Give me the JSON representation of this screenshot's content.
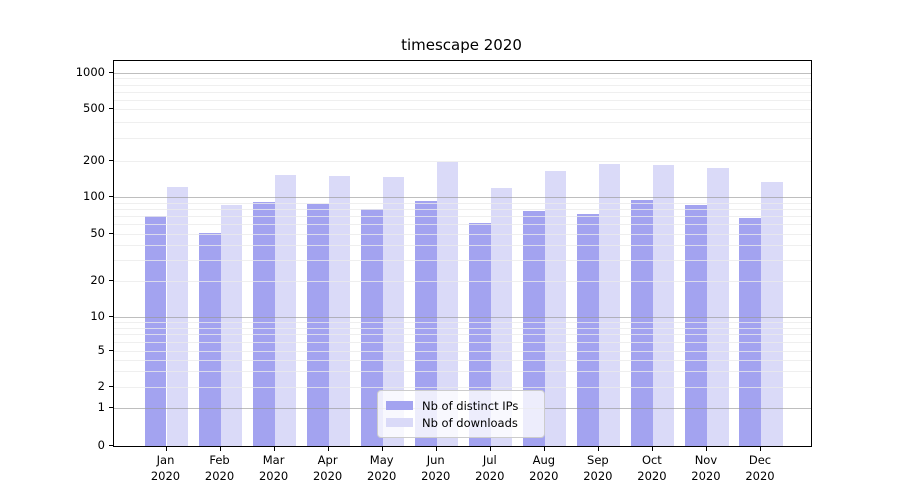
{
  "chart_data": {
    "type": "bar",
    "title": "timescape 2020",
    "categories": [
      "Jan",
      "Feb",
      "Mar",
      "Apr",
      "May",
      "Jun",
      "Jul",
      "Aug",
      "Sep",
      "Oct",
      "Nov",
      "Dec"
    ],
    "category_year": "2020",
    "series": [
      {
        "name": "Nb of distinct IPs",
        "color": "#a3a3f0",
        "values": [
          70,
          51,
          91,
          87,
          80,
          93,
          61,
          77,
          73,
          95,
          86,
          68
        ]
      },
      {
        "name": "Nb of downloads",
        "color": "#dadaf8",
        "values": [
          121,
          86,
          153,
          151,
          148,
          196,
          119,
          164,
          190,
          185,
          175,
          133
        ]
      }
    ],
    "xlabel": "",
    "ylabel": "",
    "yscale": "symlog",
    "ylim": [
      0,
      1200
    ],
    "yticks": [
      0,
      1,
      2,
      5,
      10,
      20,
      50,
      100,
      200,
      500,
      1000
    ],
    "major_gridlines": [
      1,
      10,
      100,
      1000
    ],
    "grid": "on",
    "legend_position": "lower center"
  },
  "colors": {
    "background": "#ffffff",
    "axis": "#000000",
    "major_grid": "#b7b7b7",
    "minor_grid": "#efefef"
  }
}
